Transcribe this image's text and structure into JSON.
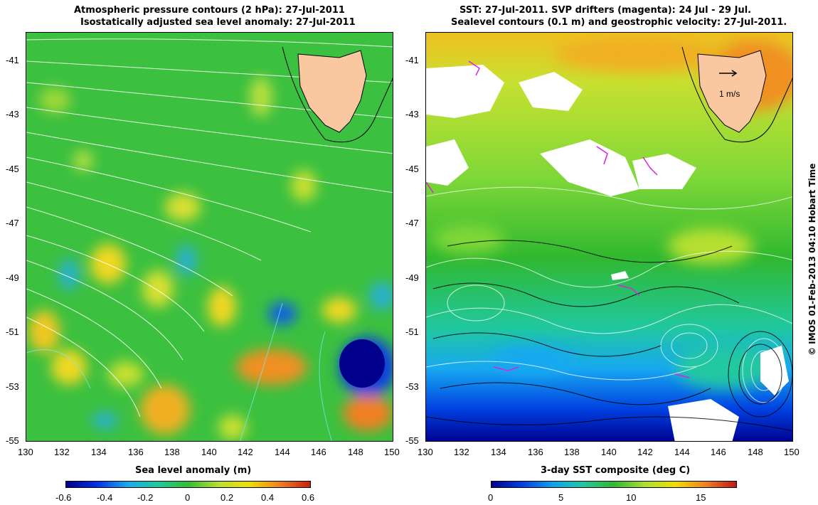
{
  "left_panel": {
    "title_line1": "Atmospheric pressure contours (2 hPa): 27-Jul-2011",
    "title_line2": "Isostatically adjusted sea level anomaly: 27-Jul-2011",
    "y_ticks": [
      "-41",
      "-43",
      "-45",
      "-47",
      "-49",
      "-51",
      "-53",
      "-55"
    ],
    "x_ticks": [
      "130",
      "132",
      "134",
      "136",
      "138",
      "140",
      "142",
      "144",
      "146",
      "148",
      "150"
    ],
    "colorbar_title": "Sea level anomaly (m)",
    "colorbar_ticks": [
      "-0.6",
      "-0.4",
      "-0.2",
      "0",
      "0.2",
      "0.4",
      "0.6"
    ],
    "colorbar_colors": [
      "#00008c",
      "#0030e8",
      "#18a8f0",
      "#20c8a0",
      "#30c030",
      "#b8e030",
      "#f0e000",
      "#f08020",
      "#c82010"
    ]
  },
  "right_panel": {
    "title_line1": "SST: 27-Jul-2011. SVP drifters (magenta): 24 Jul - 29 Jul.",
    "title_line2": "Sealevel contours (0.1 m) and geostrophic velocity: 27-Jul-2011.",
    "y_ticks": [
      "-41",
      "-43",
      "-45",
      "-47",
      "-49",
      "-51",
      "-53",
      "-55"
    ],
    "x_ticks": [
      "130",
      "132",
      "134",
      "136",
      "138",
      "140",
      "142",
      "144",
      "146",
      "148",
      "150"
    ],
    "velocity_scale_label": "1 m/s",
    "colorbar_title": "3-day SST composite (deg C)",
    "colorbar_ticks": [
      "0",
      "5",
      "10",
      "15"
    ],
    "colorbar_colors": [
      "#000090",
      "#0040e0",
      "#10a0f0",
      "#20c8a0",
      "#30b830",
      "#a8e030",
      "#f0e000",
      "#f08020",
      "#c01818"
    ]
  },
  "colors": {
    "land": "#f9c8a0",
    "ocean_green": "#3cc040",
    "cold_blue": "#1040e0",
    "contour": "#7fe8ff"
  },
  "copyright": "© IMOS 01-Feb-2013 04:10 Hobart Time"
}
